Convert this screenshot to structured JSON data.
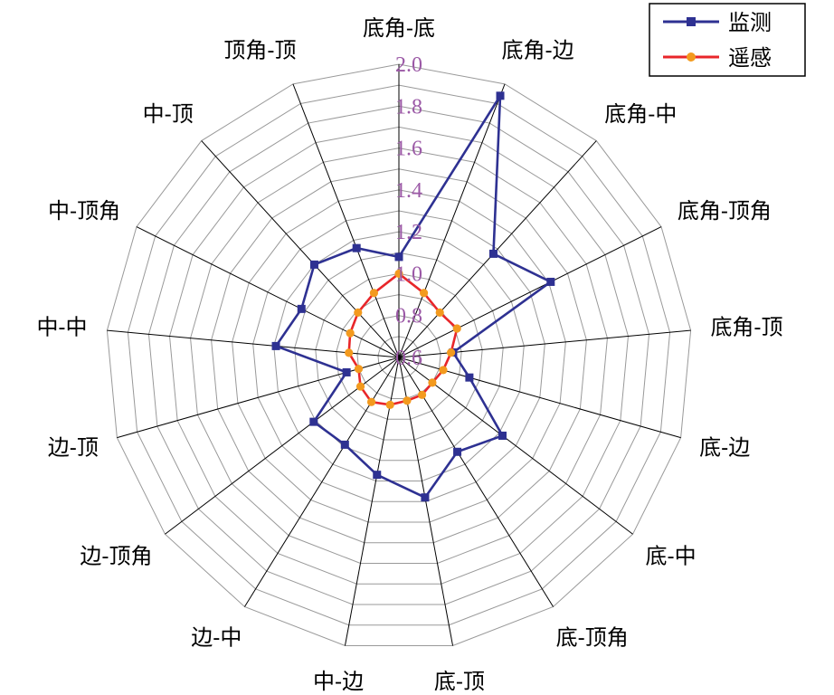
{
  "chart_data": {
    "type": "radar",
    "categories": [
      "底角-底",
      "底角-边",
      "底角-中",
      "底角-顶角",
      "底角-顶",
      "底-边",
      "底-中",
      "底-顶角",
      "底-顶",
      "中-边",
      "边-中",
      "边-顶角",
      "边-顶",
      "中-中",
      "中-顶角",
      "中-顶",
      "顶角-顶"
    ],
    "r_ticks": [
      "0.6",
      "0.8",
      "1.0",
      "1.2",
      "1.4",
      "1.6",
      "1.8",
      "2.0"
    ],
    "rlim": [
      0.6,
      2.0
    ],
    "series": [
      {
        "name": "监测",
        "color": "#2e3192",
        "marker": "square",
        "values": [
          1.08,
          1.94,
          1.27,
          1.41,
          0.86,
          0.95,
          1.22,
          1.13,
          1.28,
          1.17,
          1.09,
          1.11,
          0.86,
          1.19,
          1.12,
          1.2,
          1.16
        ]
      },
      {
        "name": "遥感",
        "color": "#e8262a",
        "marker": "circle",
        "values": [
          1.0,
          0.93,
          0.89,
          0.91,
          0.85,
          0.82,
          0.8,
          0.81,
          0.81,
          0.83,
          0.85,
          0.83,
          0.8,
          0.84,
          0.86,
          0.89,
          0.93
        ]
      }
    ],
    "grid": true,
    "legend": "top-right"
  },
  "colors": {
    "grid": "#999999",
    "axis": "#000000",
    "tick_label": "#9b59a6"
  }
}
